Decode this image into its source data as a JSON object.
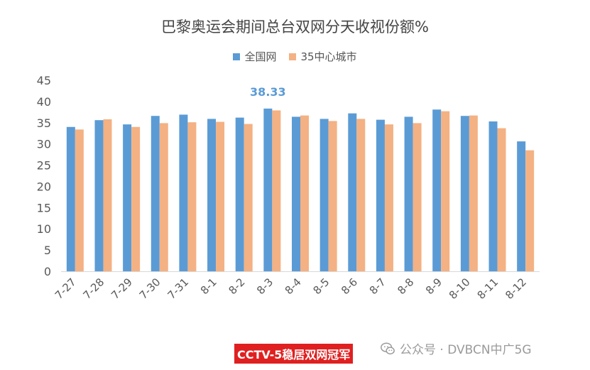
{
  "chart_data": {
    "type": "bar",
    "title": "巴黎奥运会期间总台双网分天收视份额%",
    "categories": [
      "7-27",
      "7-28",
      "7-29",
      "7-30",
      "7-31",
      "8-1",
      "8-2",
      "8-3",
      "8-4",
      "8-5",
      "8-6",
      "8-7",
      "8-8",
      "8-9",
      "8-10",
      "8-11",
      "8-12"
    ],
    "series": [
      {
        "name": "全国网",
        "color": "#5b9bd5",
        "values": [
          34.0,
          35.6,
          34.6,
          36.6,
          36.9,
          35.9,
          36.2,
          38.33,
          36.4,
          35.9,
          37.2,
          35.7,
          36.4,
          38.1,
          36.6,
          35.3,
          30.6
        ]
      },
      {
        "name": "35中心城市",
        "color": "#f4b183",
        "values": [
          33.4,
          35.8,
          34.0,
          34.9,
          35.1,
          35.2,
          34.7,
          37.9,
          36.7,
          35.4,
          35.9,
          34.6,
          34.9,
          37.7,
          36.7,
          33.7,
          28.5
        ]
      }
    ],
    "ylim": [
      0,
      45
    ],
    "yticks": [
      0,
      5,
      10,
      15,
      20,
      25,
      30,
      35,
      40,
      45
    ],
    "gridlines": false,
    "legend_position": "top-center",
    "annotation": {
      "text": "38.33",
      "category": "8-3",
      "series": "全国网",
      "color": "#5b9bd5"
    }
  },
  "footer": {
    "badge": "CCTV-5稳居双网冠军",
    "watermark": "公众号 · DVBCN中广5G"
  },
  "icons": {
    "watermark_icon": "wechat-icon"
  }
}
